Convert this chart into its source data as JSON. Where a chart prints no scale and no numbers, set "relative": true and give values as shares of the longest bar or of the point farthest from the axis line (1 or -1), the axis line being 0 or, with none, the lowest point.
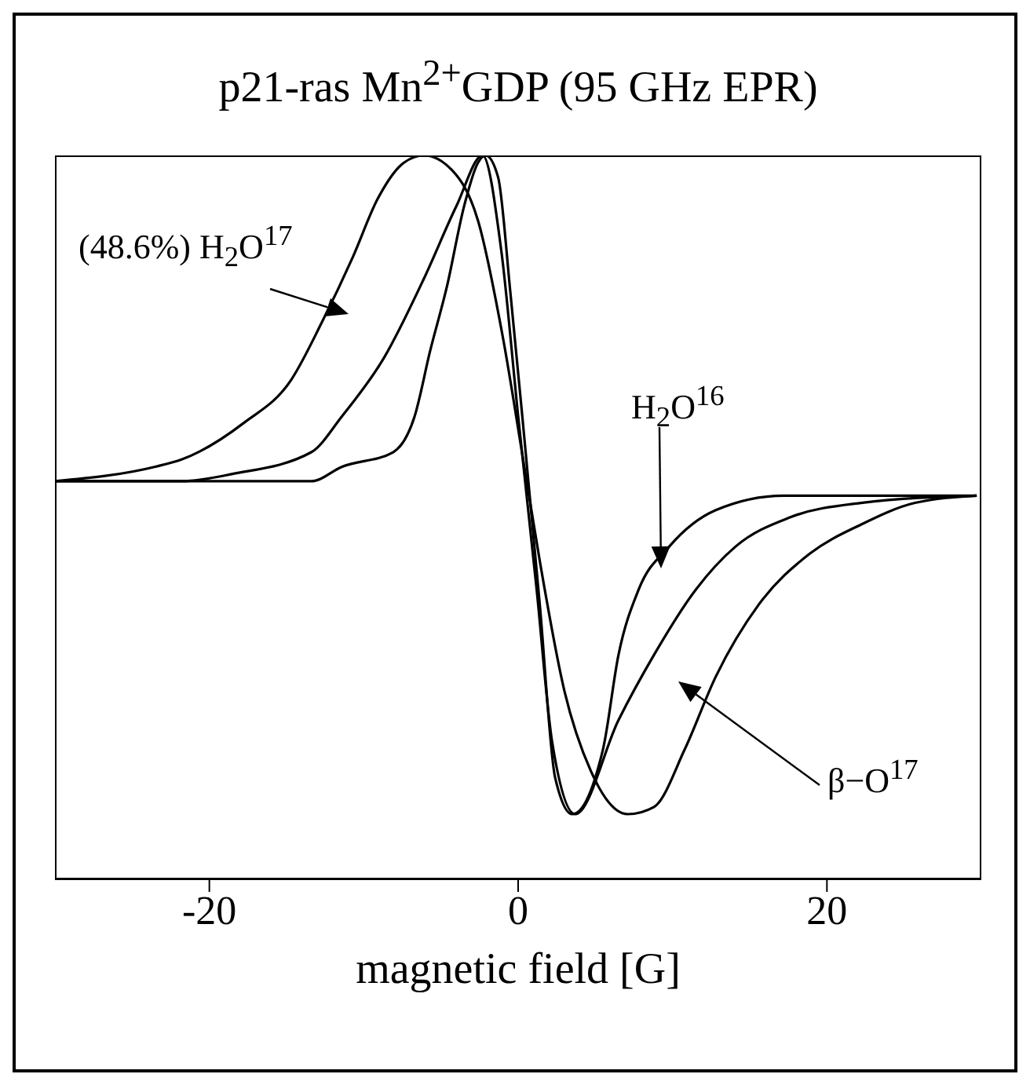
{
  "chart_data": {
    "type": "line",
    "title": "p21-ras Mn$^{2+}$GDP (95 GHz EPR)",
    "xlabel": "magnetic field [G]",
    "relative": true,
    "xlim": [
      -30,
      30
    ],
    "xticks": [
      -20,
      0,
      20
    ],
    "grid": false,
    "marker": "none",
    "line_style": "solid",
    "tick_labels": "x",
    "annotations": [
      "(48.6%) H$_{2}$O$^{17}$",
      "H$_{2}$O$^{16}$",
      "β−O$^{17}$"
    ],
    "series": [
      {
        "color": "#000000",
        "x": [
          -30,
          -23.5,
          -21.8,
          -17.8,
          -14.7,
          -12.7,
          -10.7,
          -9.1,
          -7.4,
          -6.1,
          -4.3,
          -2.6,
          -1.0,
          0.4,
          1.4,
          3.0,
          4.7,
          7.1,
          8.8,
          10.8,
          12.8,
          15.6,
          18.9,
          22.2,
          25.7,
          29.7
        ],
        "values": [
          0.55,
          0.57,
          0.58,
          0.63,
          0.69,
          0.77,
          0.86,
          0.94,
          0.99,
          1,
          0.98,
          0.91,
          0.75,
          0.57,
          0.44,
          0.26,
          0.15,
          0.09,
          0.1,
          0.18,
          0.28,
          0.38,
          0.45,
          0.49,
          0.52,
          0.53
        ]
      },
      {
        "color": "#000000",
        "x": [
          -30,
          -13.4,
          -11.4,
          -8.1,
          -6.7,
          -5.7,
          -4.6,
          -3.5,
          -2.6,
          -2.1,
          -1.3,
          -0.5,
          0.4,
          1.4,
          2.4,
          3.5,
          5.5,
          6.5,
          7.8,
          9.8,
          12.8,
          17.2,
          22.2,
          29.7
        ],
        "values": [
          0.55,
          0.55,
          0.57,
          0.59,
          0.64,
          0.73,
          0.82,
          0.93,
          0.99,
          1,
          0.97,
          0.81,
          0.61,
          0.38,
          0.14,
          0.09,
          0.18,
          0.31,
          0.4,
          0.46,
          0.51,
          0.53,
          0.53,
          0.53
        ]
      },
      {
        "color": "#000000",
        "x": [
          -30,
          -21.8,
          -18.5,
          -13.4,
          -11.4,
          -8.7,
          -6.1,
          -4.0,
          -2.3,
          -1.1,
          0,
          1.2,
          2.2,
          3.7,
          6.5,
          8.8,
          11.5,
          14.1,
          17.6,
          22.2,
          29.7
        ],
        "values": [
          0.55,
          0.55,
          0.56,
          0.59,
          0.64,
          0.72,
          0.83,
          0.93,
          1,
          0.87,
          0.64,
          0.4,
          0.19,
          0.09,
          0.22,
          0.31,
          0.4,
          0.46,
          0.5,
          0.52,
          0.53
        ]
      }
    ]
  }
}
